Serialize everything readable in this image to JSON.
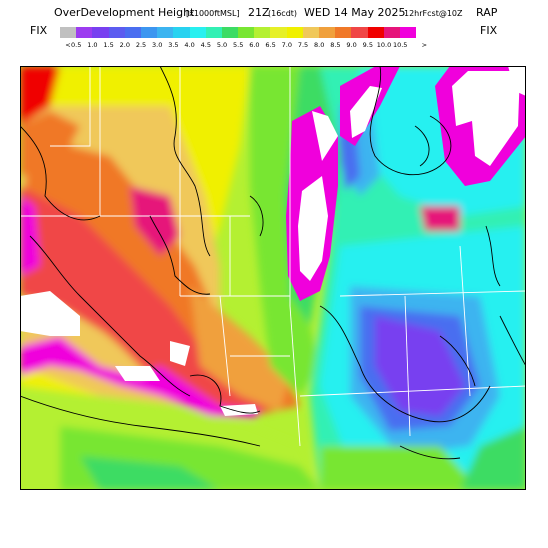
{
  "header": {
    "title_main": "OverDevelopment Height",
    "title_units": "[x1000ftMSL]",
    "valid_time": "21Z",
    "local_time": "(16cdt)",
    "valid_date": "WED 14 May 2025",
    "forecast_info": "12hrFcst@10Z",
    "model": "RAP"
  },
  "legend": {
    "fix_left": "FIX",
    "fix_right": "FIX",
    "labels": [
      "<",
      "0.5",
      "1.0",
      "1.5",
      "2.0",
      "2.5",
      "3.0",
      "3.5",
      "4.0",
      "4.5",
      "5.0",
      "5.5",
      "6.0",
      "6.5",
      "7.0",
      "7.5",
      "8.0",
      "8.5",
      "9.0",
      "9.5",
      "10.0",
      "10.5",
      ">"
    ],
    "colors": [
      "#c0c0c0",
      "#9c3cf0",
      "#7840f0",
      "#5c5cf0",
      "#4a6ef0",
      "#3c96f0",
      "#3cb4f0",
      "#28d2f0",
      "#28f0f0",
      "#32f0b4",
      "#3cdc64",
      "#78e632",
      "#b4f032",
      "#e6f028",
      "#f0f000",
      "#f0c85a",
      "#f0a03c",
      "#f07828",
      "#f04646",
      "#f00000",
      "#e6147a",
      "#f000dc"
    ]
  },
  "map": {
    "field_colors": {
      "high": "#f00000",
      "red": "#f04646",
      "orange": "#f07828",
      "lightorange": "#f0a03c",
      "tan": "#f0c85a",
      "yellow": "#f0f000",
      "lime": "#b4f032",
      "green": "#78e632",
      "midgreen": "#3cdc64",
      "teal": "#32f0b4",
      "cyan": "#28f0f0",
      "sky": "#3cb4f0",
      "blue": "#4a6ef0",
      "violet": "#7840f0",
      "magenta": "#f000dc",
      "pink": "#e6147a"
    }
  }
}
